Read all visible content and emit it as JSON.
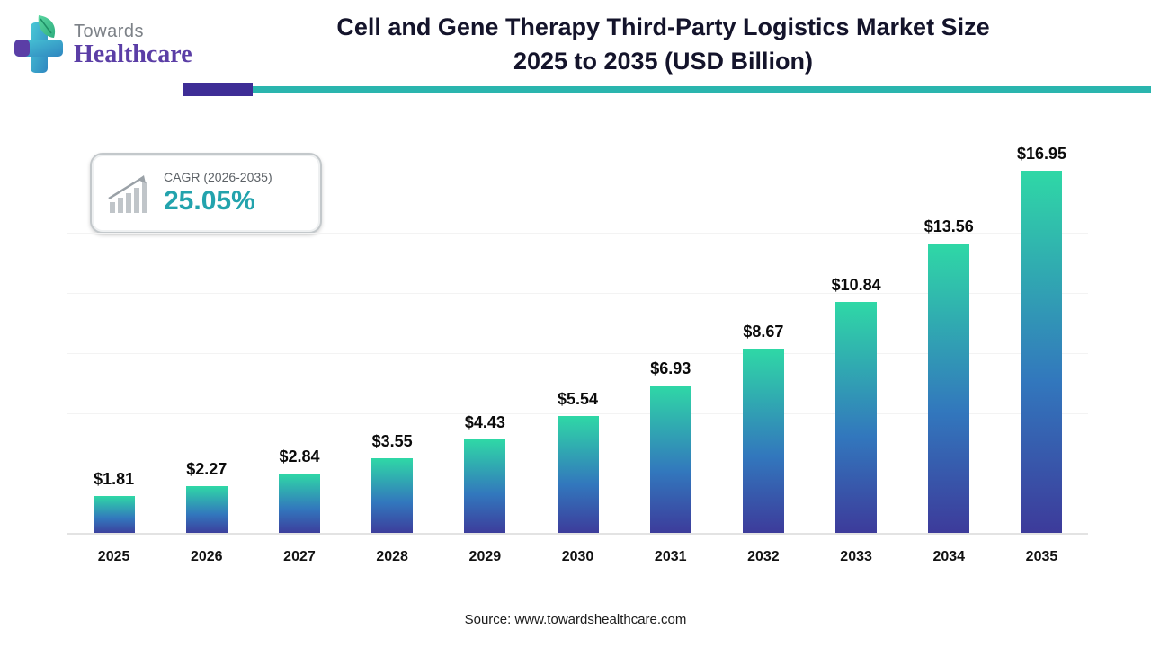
{
  "header": {
    "logo_top": "Towards",
    "logo_bottom": "Healthcare",
    "title_line1": "Cell and Gene Therapy Third-Party Logistics Market Size",
    "title_line2": "2025 to 2035 (USD Billion)"
  },
  "badge": {
    "label": "CAGR (2026-2035)",
    "value": "25.05%"
  },
  "chart_data": {
    "type": "bar",
    "title": "Cell and Gene Therapy Third-Party Logistics Market Size 2025 to 2035 (USD Billion)",
    "categories": [
      "2025",
      "2026",
      "2027",
      "2028",
      "2029",
      "2030",
      "2031",
      "2032",
      "2033",
      "2034",
      "2035"
    ],
    "values": [
      1.81,
      2.27,
      2.84,
      3.55,
      4.43,
      5.54,
      6.93,
      8.67,
      10.84,
      13.56,
      16.95
    ],
    "value_labels": [
      "$1.81",
      "$2.27",
      "$2.84",
      "$3.55",
      "$4.43",
      "$5.54",
      "$6.93",
      "$8.67",
      "$10.84",
      "$13.56",
      "$16.95"
    ],
    "unit": "USD Billion",
    "xlabel": "",
    "ylabel": "",
    "ylim": [
      0,
      17.5
    ],
    "grid": "faint-horizontal",
    "legend": "none"
  },
  "footer": {
    "source": "Source: www.towardshealthcare.com"
  },
  "colors": {
    "bar_gradient_top": "#2fd8a6",
    "bar_gradient_mid": "#3277bd",
    "bar_gradient_bottom": "#3d3a9a",
    "divider_purple": "#3e2d96",
    "divider_teal": "#2ab5ae",
    "cagr_value_teal": "#23a3ad",
    "logo_purple": "#5b3ea6",
    "logo_gray": "#7d8288",
    "title_color": "#14142b"
  }
}
